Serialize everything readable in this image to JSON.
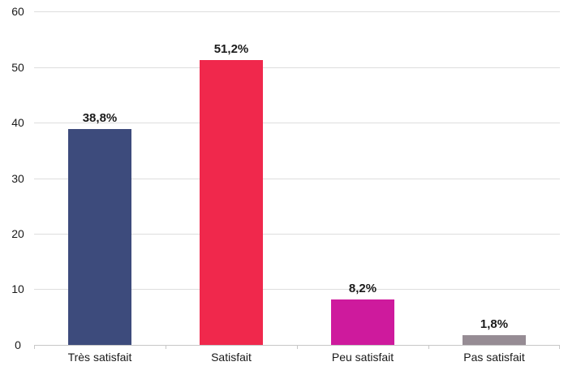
{
  "chart_data": {
    "type": "bar",
    "title": "",
    "xlabel": "",
    "ylabel": "",
    "categories": [
      "Très satisfait",
      "Satisfait",
      "Peu satisfait",
      "Pas satisfait"
    ],
    "values": [
      38.8,
      51.2,
      8.2,
      1.8
    ],
    "value_labels": [
      "38,8%",
      "51,2%",
      "8,2%",
      "1,8%"
    ],
    "bar_colors": [
      "#3d4b7c",
      "#f0284c",
      "#ce1a9d",
      "#968c94"
    ],
    "ylim": [
      0,
      60
    ],
    "yticks": [
      60,
      50,
      40,
      30,
      20,
      10,
      0
    ],
    "grid": "horizontal",
    "legend": "none",
    "gridline_color": "#dedede",
    "axis_line_color": "#c8c8c8",
    "text_color": "#1a1a1a",
    "background_color": "#ffffff"
  }
}
